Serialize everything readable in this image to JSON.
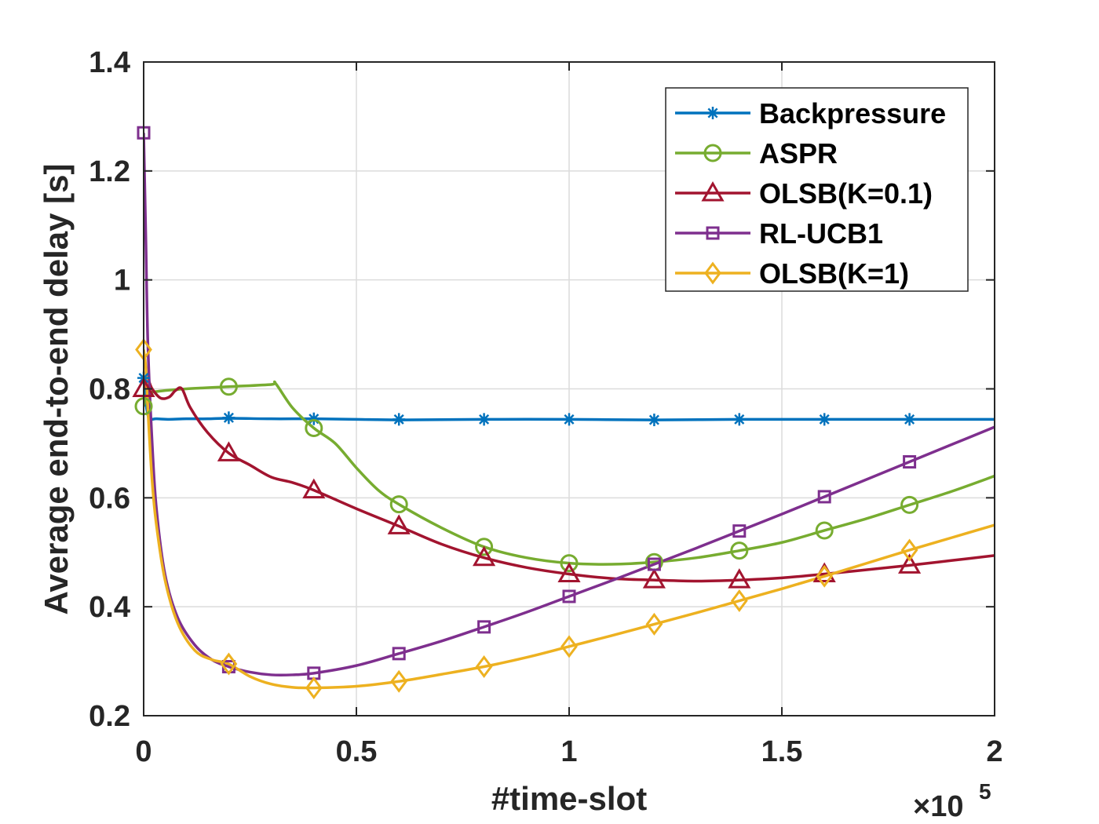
{
  "chart_data": {
    "type": "line",
    "xlabel": "#time-slot",
    "ylabel": "Average end-to-end delay [s]",
    "x_multiplier": {
      "prefix": "×10",
      "exponent": "5"
    },
    "xlim": [
      0,
      2
    ],
    "ylim": [
      0.2,
      1.4
    ],
    "xticks": [
      0,
      0.5,
      1,
      1.5,
      2
    ],
    "xtick_labels": [
      "0",
      "0.5",
      "1",
      "1.5",
      "2"
    ],
    "yticks": [
      0.2,
      0.4,
      0.6,
      0.8,
      1.0,
      1.2,
      1.4
    ],
    "ytick_labels": [
      "0.2",
      "0.4",
      "0.6",
      "0.8",
      "1",
      "1.2",
      "1.4"
    ],
    "grid": true,
    "legend_position": "top-right",
    "series": [
      {
        "name": "Backpressure",
        "color": "#0072BD",
        "marker": "asterisk",
        "line": [
          [
            0,
            0.82
          ],
          [
            0.005,
            0.775
          ],
          [
            0.01,
            0.752
          ],
          [
            0.015,
            0.744
          ],
          [
            0.03,
            0.745
          ],
          [
            0.06,
            0.744
          ],
          [
            0.1,
            0.745
          ],
          [
            0.15,
            0.745
          ],
          [
            0.2,
            0.746
          ],
          [
            0.3,
            0.745
          ],
          [
            0.4,
            0.745
          ],
          [
            0.5,
            0.744
          ],
          [
            0.6,
            0.743
          ],
          [
            0.8,
            0.744
          ],
          [
            1.0,
            0.744
          ],
          [
            1.2,
            0.743
          ],
          [
            1.4,
            0.744
          ],
          [
            1.6,
            0.744
          ],
          [
            1.8,
            0.744
          ],
          [
            2.0,
            0.744
          ]
        ],
        "markers": [
          [
            0,
            0.82
          ],
          [
            0.2,
            0.747
          ],
          [
            0.4,
            0.745
          ],
          [
            0.6,
            0.744
          ],
          [
            0.8,
            0.744
          ],
          [
            1.0,
            0.744
          ],
          [
            1.2,
            0.743
          ],
          [
            1.4,
            0.744
          ],
          [
            1.6,
            0.744
          ],
          [
            1.8,
            0.744
          ]
        ]
      },
      {
        "name": "ASPR",
        "color": "#77AC30",
        "marker": "circle",
        "line": [
          [
            0,
            0.768
          ],
          [
            0.01,
            0.79
          ],
          [
            0.03,
            0.795
          ],
          [
            0.1,
            0.8
          ],
          [
            0.2,
            0.804
          ],
          [
            0.3,
            0.808
          ],
          [
            0.31,
            0.81
          ],
          [
            0.35,
            0.765
          ],
          [
            0.4,
            0.728
          ],
          [
            0.45,
            0.7
          ],
          [
            0.5,
            0.655
          ],
          [
            0.55,
            0.615
          ],
          [
            0.6,
            0.588
          ],
          [
            0.7,
            0.545
          ],
          [
            0.8,
            0.51
          ],
          [
            0.9,
            0.49
          ],
          [
            1.0,
            0.48
          ],
          [
            1.1,
            0.478
          ],
          [
            1.2,
            0.482
          ],
          [
            1.3,
            0.49
          ],
          [
            1.4,
            0.503
          ],
          [
            1.5,
            0.518
          ],
          [
            1.6,
            0.54
          ],
          [
            1.7,
            0.562
          ],
          [
            1.8,
            0.587
          ],
          [
            1.9,
            0.612
          ],
          [
            2.0,
            0.64
          ]
        ],
        "markers": [
          [
            0,
            0.768
          ],
          [
            0.2,
            0.804
          ],
          [
            0.4,
            0.728
          ],
          [
            0.6,
            0.588
          ],
          [
            0.8,
            0.51
          ],
          [
            1.0,
            0.48
          ],
          [
            1.2,
            0.482
          ],
          [
            1.4,
            0.503
          ],
          [
            1.6,
            0.54
          ],
          [
            1.8,
            0.587
          ]
        ]
      },
      {
        "name": "OLSB(K=0.1)",
        "color": "#A2142F",
        "marker": "triangle",
        "line": [
          [
            0,
            0.8
          ],
          [
            0.008,
            0.82
          ],
          [
            0.02,
            0.8
          ],
          [
            0.04,
            0.783
          ],
          [
            0.06,
            0.785
          ],
          [
            0.075,
            0.797
          ],
          [
            0.09,
            0.8
          ],
          [
            0.11,
            0.765
          ],
          [
            0.15,
            0.72
          ],
          [
            0.2,
            0.682
          ],
          [
            0.25,
            0.66
          ],
          [
            0.3,
            0.638
          ],
          [
            0.35,
            0.628
          ],
          [
            0.4,
            0.614
          ],
          [
            0.5,
            0.58
          ],
          [
            0.6,
            0.548
          ],
          [
            0.7,
            0.515
          ],
          [
            0.8,
            0.49
          ],
          [
            0.9,
            0.472
          ],
          [
            1.0,
            0.46
          ],
          [
            1.1,
            0.452
          ],
          [
            1.2,
            0.449
          ],
          [
            1.3,
            0.447
          ],
          [
            1.4,
            0.449
          ],
          [
            1.5,
            0.453
          ],
          [
            1.6,
            0.46
          ],
          [
            1.7,
            0.468
          ],
          [
            1.8,
            0.476
          ],
          [
            1.9,
            0.485
          ],
          [
            2.0,
            0.494
          ]
        ],
        "markers": [
          [
            0,
            0.8
          ],
          [
            0.2,
            0.682
          ],
          [
            0.4,
            0.614
          ],
          [
            0.6,
            0.548
          ],
          [
            0.8,
            0.49
          ],
          [
            1.0,
            0.46
          ],
          [
            1.2,
            0.449
          ],
          [
            1.4,
            0.449
          ],
          [
            1.6,
            0.46
          ],
          [
            1.8,
            0.476
          ]
        ]
      },
      {
        "name": "RL-UCB1",
        "color": "#7E2F8E",
        "marker": "square",
        "line": [
          [
            0,
            1.27
          ],
          [
            0.005,
            1.08
          ],
          [
            0.01,
            0.88
          ],
          [
            0.02,
            0.7
          ],
          [
            0.03,
            0.58
          ],
          [
            0.05,
            0.46
          ],
          [
            0.08,
            0.38
          ],
          [
            0.12,
            0.33
          ],
          [
            0.16,
            0.303
          ],
          [
            0.2,
            0.29
          ],
          [
            0.25,
            0.28
          ],
          [
            0.3,
            0.275
          ],
          [
            0.35,
            0.275
          ],
          [
            0.4,
            0.278
          ],
          [
            0.5,
            0.292
          ],
          [
            0.6,
            0.314
          ],
          [
            0.7,
            0.337
          ],
          [
            0.8,
            0.363
          ],
          [
            0.9,
            0.39
          ],
          [
            1.0,
            0.419
          ],
          [
            1.1,
            0.448
          ],
          [
            1.2,
            0.478
          ],
          [
            1.3,
            0.508
          ],
          [
            1.4,
            0.539
          ],
          [
            1.5,
            0.57
          ],
          [
            1.6,
            0.602
          ],
          [
            1.7,
            0.634
          ],
          [
            1.8,
            0.666
          ],
          [
            1.9,
            0.698
          ],
          [
            2.0,
            0.73
          ]
        ],
        "markers": [
          [
            0,
            1.27
          ],
          [
            0.2,
            0.29
          ],
          [
            0.4,
            0.278
          ],
          [
            0.6,
            0.314
          ],
          [
            0.8,
            0.363
          ],
          [
            1.0,
            0.419
          ],
          [
            1.2,
            0.478
          ],
          [
            1.4,
            0.539
          ],
          [
            1.6,
            0.602
          ],
          [
            1.8,
            0.666
          ]
        ]
      },
      {
        "name": "OLSB(K=1)",
        "color": "#EDB120",
        "marker": "diamond",
        "line": [
          [
            0,
            0.872
          ],
          [
            0.005,
            0.84
          ],
          [
            0.01,
            0.76
          ],
          [
            0.02,
            0.63
          ],
          [
            0.03,
            0.55
          ],
          [
            0.05,
            0.45
          ],
          [
            0.08,
            0.37
          ],
          [
            0.12,
            0.32
          ],
          [
            0.16,
            0.303
          ],
          [
            0.2,
            0.295
          ],
          [
            0.25,
            0.272
          ],
          [
            0.3,
            0.258
          ],
          [
            0.35,
            0.252
          ],
          [
            0.4,
            0.251
          ],
          [
            0.5,
            0.254
          ],
          [
            0.6,
            0.263
          ],
          [
            0.7,
            0.276
          ],
          [
            0.8,
            0.29
          ],
          [
            0.9,
            0.307
          ],
          [
            1.0,
            0.327
          ],
          [
            1.1,
            0.347
          ],
          [
            1.2,
            0.368
          ],
          [
            1.3,
            0.389
          ],
          [
            1.4,
            0.411
          ],
          [
            1.5,
            0.433
          ],
          [
            1.6,
            0.456
          ],
          [
            1.7,
            0.48
          ],
          [
            1.8,
            0.504
          ],
          [
            1.9,
            0.527
          ],
          [
            2.0,
            0.55
          ]
        ],
        "markers": [
          [
            0,
            0.872
          ],
          [
            0.2,
            0.295
          ],
          [
            0.4,
            0.251
          ],
          [
            0.6,
            0.263
          ],
          [
            0.8,
            0.29
          ],
          [
            1.0,
            0.327
          ],
          [
            1.2,
            0.368
          ],
          [
            1.4,
            0.411
          ],
          [
            1.6,
            0.456
          ],
          [
            1.8,
            0.504
          ]
        ]
      }
    ]
  }
}
